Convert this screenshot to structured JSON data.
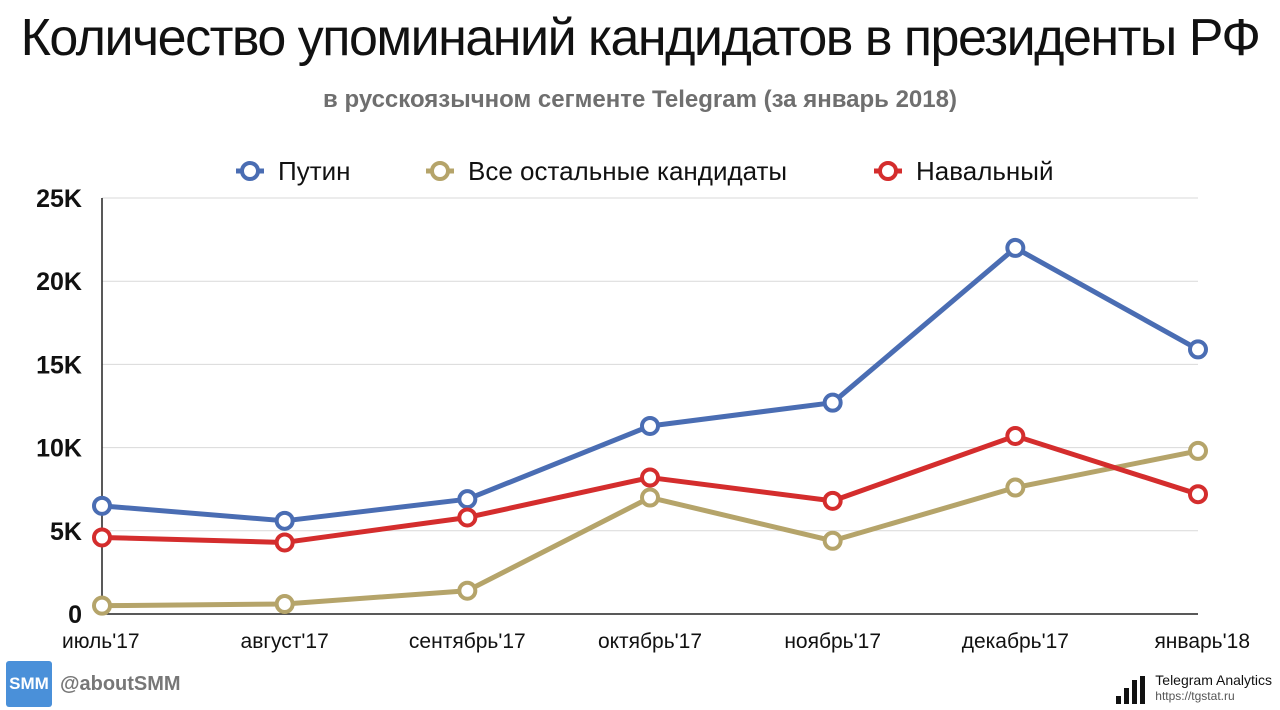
{
  "header": {
    "title": "Количество упоминаний кандидатов в президенты РФ",
    "subtitle": "в русскоязычном сегменте Telegram (за январь 2018)"
  },
  "footer": {
    "logo_text": "SMM",
    "handle": "@aboutSMM",
    "brand_name": "Telegram Analytics",
    "brand_url": "https://tgstat.ru"
  },
  "chart_data": {
    "type": "line",
    "title": "Количество упоминаний кандидатов в президенты РФ",
    "subtitle": "в русскоязычном сегменте Telegram (за январь 2018)",
    "xlabel": "",
    "ylabel": "",
    "categories": [
      "июль'17",
      "август'17",
      "сентябрь'17",
      "октябрь'17",
      "ноябрь'17",
      "декабрь'17",
      "январь'18"
    ],
    "ylim": [
      0,
      25000
    ],
    "yticks": [
      0,
      5000,
      10000,
      15000,
      20000,
      25000
    ],
    "ytick_labels": [
      "0",
      "5K",
      "10K",
      "15K",
      "20K",
      "25K"
    ],
    "grid": true,
    "legend_position": "top",
    "series": [
      {
        "name": "Путин",
        "color": "#4a6db3",
        "values": [
          6500,
          5600,
          6900,
          11300,
          12700,
          22000,
          15900
        ]
      },
      {
        "name": "Все остальные кандидаты",
        "color": "#b5a46a",
        "values": [
          500,
          600,
          1400,
          7000,
          4400,
          7600,
          9800
        ]
      },
      {
        "name": "Навальный",
        "color": "#d42d2d",
        "values": [
          4600,
          4300,
          5800,
          8200,
          6800,
          10700,
          7200
        ]
      }
    ]
  }
}
